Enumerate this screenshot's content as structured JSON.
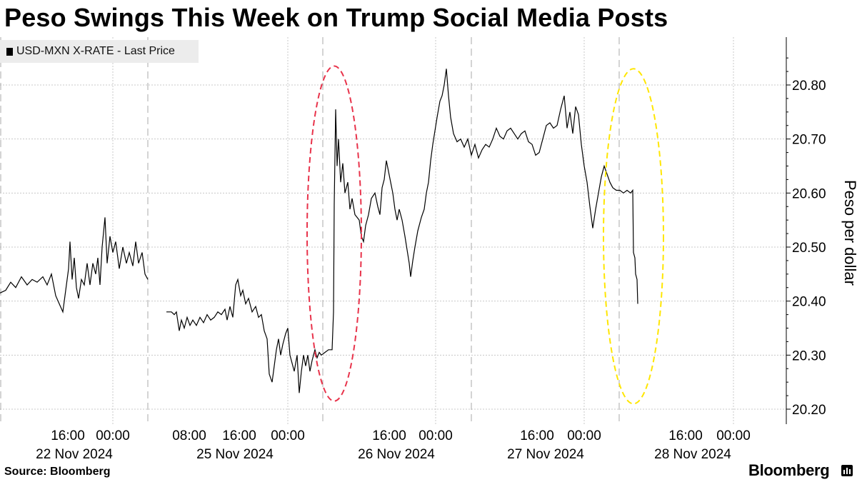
{
  "title": "Peso Swings This Week on Trump Social Media Posts",
  "legend": {
    "label": "USD-MXN X-RATE - Last Price"
  },
  "footer": {
    "source": "Source: Bloomberg",
    "brand": "Bloomberg"
  },
  "chart_data": {
    "type": "line",
    "title": "Peso Swings This Week on Trump Social Media Posts",
    "ylabel": "Peso per dollar",
    "ylim": [
      20.185,
      20.885
    ],
    "xlim": [
      0,
      1080
    ],
    "y_ticks": [
      20.2,
      20.3,
      20.4,
      20.5,
      20.6,
      20.7,
      20.8
    ],
    "y_axis_side": "right",
    "grid": true,
    "legend_position": "top-left",
    "x_time_labels": [
      {
        "x": 95,
        "label": "16:00"
      },
      {
        "x": 158,
        "label": "00:00"
      },
      {
        "x": 265,
        "label": "08:00"
      },
      {
        "x": 335,
        "label": "16:00"
      },
      {
        "x": 403,
        "label": "00:00"
      },
      {
        "x": 545,
        "label": "16:00"
      },
      {
        "x": 610,
        "label": "00:00"
      },
      {
        "x": 752,
        "label": "16:00"
      },
      {
        "x": 818,
        "label": "00:00"
      },
      {
        "x": 960,
        "label": "16:00"
      },
      {
        "x": 1027,
        "label": "00:00"
      }
    ],
    "x_date_labels": [
      {
        "x": 104,
        "label": "22 Nov 2024"
      },
      {
        "x": 329,
        "label": "25 Nov 2024"
      },
      {
        "x": 555,
        "label": "26 Nov 2024"
      },
      {
        "x": 764,
        "label": "27 Nov 2024"
      },
      {
        "x": 970,
        "label": "28 Nov 2024"
      }
    ],
    "gridlines_x": [
      158,
      403,
      610,
      818,
      1027
    ],
    "session_breaks_x": [
      1,
      207,
      452,
      660,
      867
    ],
    "series": [
      {
        "color": "#000000",
        "segments": [
          [
            [
              0,
              20.415
            ],
            [
              8,
              20.42
            ],
            [
              15,
              20.435
            ],
            [
              22,
              20.425
            ],
            [
              30,
              20.445
            ],
            [
              38,
              20.43
            ],
            [
              45,
              20.44
            ],
            [
              52,
              20.435
            ],
            [
              60,
              20.445
            ],
            [
              66,
              20.43
            ],
            [
              72,
              20.45
            ],
            [
              78,
              20.41
            ],
            [
              83,
              20.395
            ],
            [
              88,
              20.38
            ],
            [
              92,
              20.42
            ],
            [
              96,
              20.46
            ],
            [
              98,
              20.51
            ],
            [
              101,
              20.44
            ],
            [
              104,
              20.48
            ],
            [
              107,
              20.425
            ],
            [
              110,
              20.405
            ],
            [
              114,
              20.44
            ],
            [
              118,
              20.43
            ],
            [
              122,
              20.47
            ],
            [
              126,
              20.43
            ],
            [
              130,
              20.47
            ],
            [
              134,
              20.45
            ],
            [
              137,
              20.48
            ],
            [
              140,
              20.43
            ],
            [
              143,
              20.5
            ],
            [
              147,
              20.555
            ],
            [
              150,
              20.47
            ],
            [
              154,
              20.52
            ],
            [
              158,
              20.49
            ],
            [
              162,
              20.51
            ],
            [
              167,
              20.46
            ],
            [
              172,
              20.5
            ],
            [
              177,
              20.47
            ],
            [
              181,
              20.49
            ],
            [
              186,
              20.465
            ],
            [
              190,
              20.51
            ],
            [
              194,
              20.47
            ],
            [
              199,
              20.49
            ],
            [
              203,
              20.45
            ],
            [
              207,
              20.44
            ]
          ],
          [
            [
              233,
              20.38
            ],
            [
              240,
              20.38
            ],
            [
              244,
              20.375
            ],
            [
              247,
              20.38
            ],
            [
              251,
              20.345
            ],
            [
              254,
              20.365
            ],
            [
              258,
              20.35
            ],
            [
              262,
              20.37
            ],
            [
              266,
              20.355
            ],
            [
              270,
              20.365
            ],
            [
              275,
              20.355
            ],
            [
              280,
              20.37
            ],
            [
              285,
              20.36
            ],
            [
              290,
              20.375
            ],
            [
              295,
              20.365
            ],
            [
              300,
              20.37
            ],
            [
              305,
              20.38
            ],
            [
              310,
              20.375
            ],
            [
              315,
              20.385
            ],
            [
              318,
              20.365
            ],
            [
              322,
              20.39
            ],
            [
              326,
              20.37
            ],
            [
              330,
              20.43
            ],
            [
              333,
              20.44
            ],
            [
              337,
              20.41
            ],
            [
              340,
              20.42
            ],
            [
              344,
              20.395
            ],
            [
              348,
              20.405
            ],
            [
              353,
              20.38
            ],
            [
              358,
              20.39
            ],
            [
              362,
              20.37
            ],
            [
              366,
              20.375
            ],
            [
              370,
              20.345
            ],
            [
              374,
              20.33
            ],
            [
              377,
              20.265
            ],
            [
              381,
              20.25
            ],
            [
              384,
              20.28
            ],
            [
              387,
              20.31
            ],
            [
              390,
              20.33
            ],
            [
              393,
              20.3
            ],
            [
              396,
              20.32
            ],
            [
              400,
              20.34
            ],
            [
              403,
              20.35
            ],
            [
              406,
              20.3
            ],
            [
              409,
              20.285
            ],
            [
              412,
              20.27
            ],
            [
              416,
              20.3
            ],
            [
              419,
              20.23
            ],
            [
              422,
              20.27
            ],
            [
              425,
              20.3
            ],
            [
              428,
              20.28
            ],
            [
              431,
              20.3
            ],
            [
              434,
              20.27
            ],
            [
              437,
              20.29
            ],
            [
              441,
              20.31
            ],
            [
              444,
              20.295
            ],
            [
              447,
              20.305
            ],
            [
              450,
              20.3
            ],
            [
              455,
              20.305
            ],
            [
              460,
              20.31
            ],
            [
              465,
              20.31
            ],
            [
              467,
              20.38
            ],
            [
              468,
              20.58
            ],
            [
              470,
              20.755
            ],
            [
              472,
              20.65
            ],
            [
              474,
              20.7
            ],
            [
              477,
              20.62
            ],
            [
              480,
              20.655
            ],
            [
              483,
              20.6
            ],
            [
              487,
              20.62
            ],
            [
              490,
              20.57
            ],
            [
              493,
              20.59
            ],
            [
              497,
              20.56
            ],
            [
              500,
              20.555
            ],
            [
              503,
              20.55
            ],
            [
              506,
              20.52
            ],
            [
              509,
              20.51
            ],
            [
              512,
              20.54
            ],
            [
              516,
              20.56
            ],
            [
              520,
              20.59
            ],
            [
              525,
              20.6
            ],
            [
              529,
              20.575
            ],
            [
              532,
              20.56
            ],
            [
              535,
              20.61
            ],
            [
              538,
              20.625
            ],
            [
              541,
              20.66
            ],
            [
              544,
              20.64
            ],
            [
              547,
              20.62
            ],
            [
              550,
              20.6
            ],
            [
              553,
              20.57
            ],
            [
              556,
              20.55
            ],
            [
              559,
              20.57
            ],
            [
              563,
              20.55
            ],
            [
              567,
              20.52
            ],
            [
              570,
              20.495
            ],
            [
              573,
              20.47
            ],
            [
              575,
              20.445
            ],
            [
              578,
              20.475
            ],
            [
              581,
              20.5
            ],
            [
              585,
              20.53
            ],
            [
              590,
              20.555
            ],
            [
              594,
              20.57
            ],
            [
              597,
              20.6
            ],
            [
              600,
              20.62
            ],
            [
              603,
              20.66
            ],
            [
              606,
              20.69
            ],
            [
              609,
              20.715
            ],
            [
              612,
              20.74
            ],
            [
              616,
              20.77
            ],
            [
              619,
              20.78
            ],
            [
              622,
              20.8
            ],
            [
              625,
              20.83
            ],
            [
              628,
              20.78
            ],
            [
              631,
              20.74
            ],
            [
              635,
              20.71
            ],
            [
              640,
              20.695
            ],
            [
              645,
              20.7
            ],
            [
              650,
              20.685
            ],
            [
              655,
              20.7
            ],
            [
              660,
              20.67
            ],
            [
              665,
              20.69
            ],
            [
              670,
              20.665
            ],
            [
              675,
              20.68
            ],
            [
              680,
              20.69
            ],
            [
              685,
              20.685
            ],
            [
              690,
              20.7
            ],
            [
              695,
              20.72
            ],
            [
              700,
              20.705
            ],
            [
              705,
              20.7
            ],
            [
              710,
              20.715
            ],
            [
              715,
              20.72
            ],
            [
              720,
              20.71
            ],
            [
              725,
              20.7
            ],
            [
              730,
              20.71
            ],
            [
              735,
              20.715
            ],
            [
              740,
              20.695
            ],
            [
              745,
              20.69
            ],
            [
              750,
              20.67
            ],
            [
              755,
              20.675
            ],
            [
              760,
              20.7
            ],
            [
              765,
              20.725
            ],
            [
              770,
              20.73
            ],
            [
              775,
              20.72
            ],
            [
              780,
              20.725
            ],
            [
              785,
              20.755
            ],
            [
              790,
              20.78
            ],
            [
              794,
              20.72
            ],
            [
              798,
              20.75
            ],
            [
              802,
              20.71
            ],
            [
              806,
              20.76
            ],
            [
              810,
              20.745
            ],
            [
              814,
              20.69
            ],
            [
              818,
              20.65
            ],
            [
              822,
              20.62
            ],
            [
              826,
              20.575
            ],
            [
              830,
              20.535
            ],
            [
              834,
              20.57
            ],
            [
              838,
              20.6
            ],
            [
              842,
              20.63
            ],
            [
              846,
              20.65
            ],
            [
              850,
              20.635
            ],
            [
              854,
              20.62
            ],
            [
              858,
              20.61
            ],
            [
              863,
              20.605
            ],
            [
              868,
              20.605
            ],
            [
              873,
              20.6
            ],
            [
              878,
              20.605
            ],
            [
              883,
              20.6
            ],
            [
              886,
              20.605
            ],
            [
              887,
              20.49
            ],
            [
              889,
              20.48
            ],
            [
              890,
              20.45
            ],
            [
              892,
              20.44
            ],
            [
              893,
              20.395
            ]
          ]
        ]
      }
    ],
    "annotations": [
      {
        "type": "ellipse",
        "color": "#e8334b",
        "x_center": 468,
        "y_center": 20.525,
        "x_radius": 38,
        "y_half_range": 0.31
      },
      {
        "type": "ellipse",
        "color": "#ffe600",
        "x_center": 887,
        "y_center": 20.52,
        "x_radius": 42,
        "y_half_range": 0.31
      }
    ]
  }
}
